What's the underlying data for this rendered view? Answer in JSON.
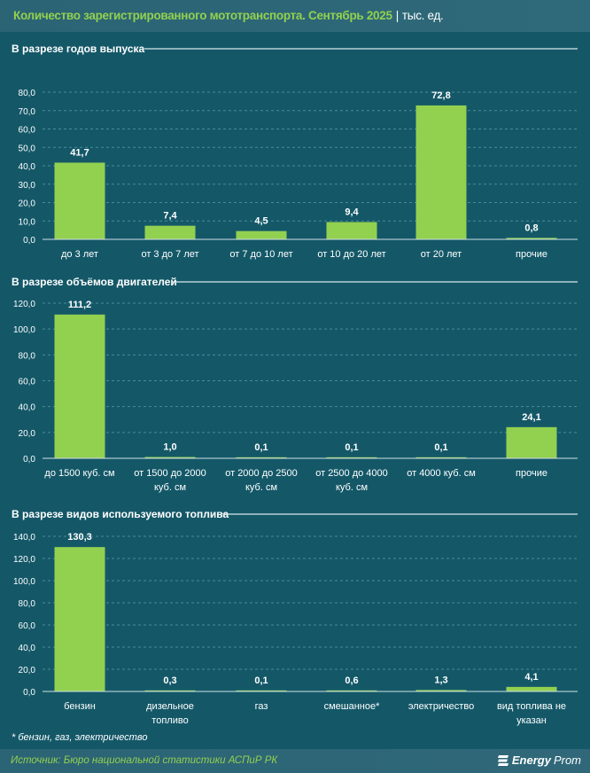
{
  "header": {
    "title": "Количество зарегистрированного мототранспорта. Сентябрь 2025",
    "separator": "|",
    "unit": "тыс. ед."
  },
  "chart_data": [
    {
      "type": "bar",
      "title": "В разрезе годов выпуска",
      "categories": [
        [
          "до 3 лет"
        ],
        [
          "от 3 до 7 лет"
        ],
        [
          "от 7 до 10 лет"
        ],
        [
          "от 10 до 20 лет"
        ],
        [
          "от 20 лет"
        ],
        [
          "прочие"
        ]
      ],
      "values": [
        41.7,
        7.4,
        4.5,
        9.4,
        72.8,
        0.8
      ],
      "labels": [
        "41,7",
        "7,4",
        "4,5",
        "9,4",
        "72,8",
        "0,8"
      ],
      "ylim": [
        0,
        80
      ],
      "yticks": [
        "0,0",
        "10,0",
        "20,0",
        "30,0",
        "40,0",
        "50,0",
        "60,0",
        "70,0",
        "80,0"
      ],
      "ystep": 10
    },
    {
      "type": "bar",
      "title": "В разрезе объёмов двигателей",
      "categories": [
        [
          "до 1500 куб. см"
        ],
        [
          "от 1500 до 2000",
          "куб. см"
        ],
        [
          "от 2000 до 2500",
          "куб. см"
        ],
        [
          "от 2500 до 4000",
          "куб. см"
        ],
        [
          "от 4000 куб. см"
        ],
        [
          "прочие"
        ]
      ],
      "values": [
        111.2,
        1.0,
        0.1,
        0.1,
        0.1,
        24.1
      ],
      "labels": [
        "111,2",
        "1,0",
        "0,1",
        "0,1",
        "0,1",
        "24,1"
      ],
      "ylim": [
        0,
        120
      ],
      "yticks": [
        "0,0",
        "20,0",
        "40,0",
        "60,0",
        "80,0",
        "100,0",
        "120,0"
      ],
      "ystep": 20
    },
    {
      "type": "bar",
      "title": "В разрезе видов используемого топлива",
      "categories": [
        [
          "бензин"
        ],
        [
          "дизельное",
          "топливо"
        ],
        [
          "газ"
        ],
        [
          "смешанное*"
        ],
        [
          "электричество"
        ],
        [
          "вид топлива не",
          "указан"
        ]
      ],
      "values": [
        130.3,
        0.3,
        0.1,
        0.6,
        1.3,
        4.1
      ],
      "labels": [
        "130,3",
        "0,3",
        "0,1",
        "0,6",
        "1,3",
        "4,1"
      ],
      "ylim": [
        0,
        140
      ],
      "yticks": [
        "0,0",
        "20,0",
        "40,0",
        "60,0",
        "80,0",
        "100,0",
        "120,0",
        "140,0"
      ],
      "ystep": 20
    }
  ],
  "footnote": "* бензин, газ, электричество",
  "footer": {
    "source": "Источник: Бюро национальной статистики АСПиР РК",
    "logo": "EnergyProm",
    "logo_a": "Energy",
    "logo_b": "Prom"
  },
  "colors": {
    "bar": "#92d050",
    "accent": "#92d050",
    "grid": "#4a8a98"
  }
}
